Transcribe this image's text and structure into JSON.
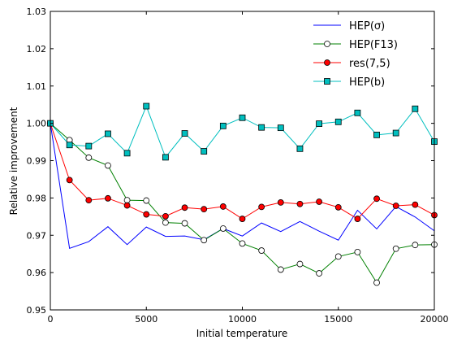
{
  "chart_data": {
    "type": "line",
    "xlabel": "Initial temperature",
    "ylabel": "Relative improvement",
    "xlim": [
      0,
      20000
    ],
    "ylim": [
      0.95,
      1.03
    ],
    "x_ticks": [
      "0",
      "5000",
      "10000",
      "15000",
      "20000"
    ],
    "y_ticks": [
      "0.95",
      "0.96",
      "0.97",
      "0.98",
      "0.99",
      "1.00",
      "1.01",
      "1.02",
      "1.03"
    ],
    "x": [
      0,
      1000,
      2000,
      3000,
      4000,
      5000,
      6000,
      7000,
      8000,
      9000,
      10000,
      11000,
      12000,
      13000,
      14000,
      15000,
      16000,
      17000,
      18000,
      19000,
      20000
    ],
    "legend_position": "top-right",
    "grid": false,
    "series": [
      {
        "name": "HEP(σ)",
        "color": "#0000ff",
        "marker": "none",
        "values": [
          1.0,
          0.9665,
          0.9683,
          0.9723,
          0.9675,
          0.9722,
          0.9697,
          0.9698,
          0.9688,
          0.9718,
          0.9698,
          0.9733,
          0.971,
          0.9737,
          0.9711,
          0.9687,
          0.9767,
          0.9717,
          0.9777,
          0.9749,
          0.9712
        ]
      },
      {
        "name": "HEP(F13)",
        "color": "#008000",
        "marker": "circle-open",
        "values": [
          1.0,
          0.9955,
          0.9908,
          0.9887,
          0.9794,
          0.9793,
          0.9734,
          0.9732,
          0.9687,
          0.9718,
          0.9678,
          0.9659,
          0.9608,
          0.9623,
          0.9598,
          0.9643,
          0.9655,
          0.9573,
          0.9664,
          0.9674,
          0.9675
        ]
      },
      {
        "name": "res(7,5)",
        "color": "#ff0000",
        "marker": "circle-filled",
        "values": [
          1.0,
          0.9848,
          0.9794,
          0.9799,
          0.978,
          0.9756,
          0.9751,
          0.9774,
          0.977,
          0.9777,
          0.9744,
          0.9776,
          0.9788,
          0.9784,
          0.979,
          0.9775,
          0.9744,
          0.9798,
          0.9779,
          0.9782,
          0.9754
        ]
      },
      {
        "name": "HEP(b)",
        "color": "#00bfbf",
        "marker": "square-filled",
        "values": [
          1.0,
          0.9942,
          0.9939,
          0.9972,
          0.992,
          1.0046,
          0.9909,
          0.9973,
          0.9925,
          0.9993,
          1.0015,
          0.9989,
          0.9988,
          0.9932,
          0.9999,
          1.0004,
          1.0028,
          0.9969,
          0.9974,
          1.0039,
          0.9951
        ]
      }
    ]
  }
}
